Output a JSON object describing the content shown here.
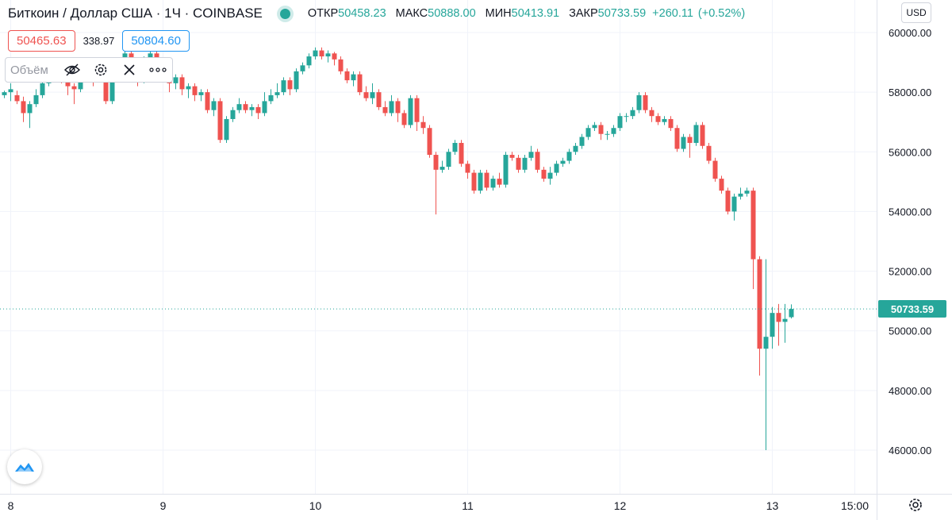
{
  "header": {
    "title": "Биткоин / Доллар США · 1Ч · COINBASE",
    "open_label": "ОТКР",
    "open": "50458.23",
    "high_label": "МАКС",
    "high": "50888.00",
    "low_label": "МИН",
    "low": "50413.91",
    "close_label": "ЗАКР",
    "close": "50733.59",
    "change": "+260.11",
    "change_pct": "(+0.52%)"
  },
  "trade": {
    "sell": "50465.63",
    "spread": "338.97",
    "buy": "50804.60"
  },
  "volume_toolbar": {
    "label": "Объём"
  },
  "currency": "USD",
  "last_price": "50733.59",
  "colors": {
    "up": "#26a69a",
    "down": "#ef5350",
    "grid": "#f0f3fa",
    "text": "#131722"
  },
  "chart_data": {
    "type": "candlestick",
    "title": "Биткоин / Доллар США · 1Ч · COINBASE",
    "y_range": [
      44800,
      60800
    ],
    "y_ticks": [
      46000,
      48000,
      50000,
      52000,
      54000,
      56000,
      58000,
      60000
    ],
    "y_tick_labels": [
      "46000.00",
      "48000.00",
      "50000.00",
      "52000.00",
      "54000.00",
      "56000.00",
      "58000.00",
      "60000.00"
    ],
    "x_labels": [
      "8",
      "9",
      "10",
      "11",
      "12",
      "13",
      "15:00"
    ],
    "x_label_index": [
      1,
      25,
      49,
      73,
      97,
      121,
      134
    ],
    "last_price": 50733.59,
    "candles": [
      [
        57900,
        58000,
        57800,
        58050
      ],
      [
        58000,
        58100,
        57700,
        58300
      ],
      [
        57900,
        57700,
        57600,
        58050
      ],
      [
        57700,
        57300,
        57000,
        57850
      ],
      [
        57300,
        57600,
        56800,
        57700
      ],
      [
        57600,
        57900,
        57500,
        58100
      ],
      [
        57900,
        58300,
        57800,
        58400
      ],
      [
        58300,
        58800,
        58200,
        58900
      ],
      [
        58800,
        58700,
        58500,
        58900
      ],
      [
        58700,
        58400,
        58300,
        58850
      ],
      [
        58400,
        58200,
        57900,
        58500
      ],
      [
        58200,
        58100,
        57600,
        58300
      ],
      [
        58100,
        58800,
        58000,
        59000
      ],
      [
        58800,
        58900,
        58700,
        59100
      ],
      [
        58900,
        58600,
        58200,
        59000
      ],
      [
        58600,
        58500,
        58400,
        58700
      ],
      [
        58500,
        57700,
        57600,
        58600
      ],
      [
        57700,
        58600,
        57600,
        58800
      ],
      [
        58600,
        58800,
        58500,
        59100
      ],
      [
        58800,
        59300,
        58700,
        59400
      ],
      [
        59300,
        58600,
        58500,
        59400
      ],
      [
        58600,
        58400,
        58200,
        58700
      ],
      [
        58400,
        59000,
        58300,
        59200
      ],
      [
        59000,
        59300,
        58900,
        59400
      ],
      [
        59300,
        58900,
        58800,
        59400
      ],
      [
        58900,
        58500,
        58400,
        59000
      ],
      [
        58500,
        58300,
        58000,
        58600
      ],
      [
        58300,
        58500,
        58100,
        58600
      ],
      [
        58500,
        58100,
        57900,
        58600
      ],
      [
        58100,
        58200,
        57800,
        58300
      ],
      [
        58200,
        57900,
        57700,
        58300
      ],
      [
        57900,
        58000,
        57700,
        58100
      ],
      [
        58000,
        57400,
        57300,
        58100
      ],
      [
        57400,
        57700,
        57200,
        57800
      ],
      [
        57700,
        56400,
        56300,
        57800
      ],
      [
        56400,
        57100,
        56300,
        57200
      ],
      [
        57100,
        57400,
        57000,
        57500
      ],
      [
        57400,
        57600,
        57300,
        57800
      ],
      [
        57600,
        57400,
        57300,
        57700
      ],
      [
        57400,
        57500,
        57200,
        57600
      ],
      [
        57500,
        57300,
        57100,
        57600
      ],
      [
        57300,
        57700,
        57200,
        58000
      ],
      [
        57700,
        57900,
        57600,
        58100
      ],
      [
        57900,
        58000,
        57800,
        58300
      ],
      [
        58000,
        58400,
        57900,
        58500
      ],
      [
        58400,
        58100,
        57900,
        58500
      ],
      [
        58100,
        58700,
        58000,
        58800
      ],
      [
        58700,
        58900,
        58600,
        59000
      ],
      [
        58900,
        59200,
        58800,
        59300
      ],
      [
        59200,
        59400,
        59100,
        59500
      ],
      [
        59400,
        59200,
        59100,
        59500
      ],
      [
        59200,
        59300,
        59000,
        59400
      ],
      [
        59300,
        59100,
        58900,
        59350
      ],
      [
        59100,
        58700,
        58600,
        59200
      ],
      [
        58700,
        58400,
        58300,
        58800
      ],
      [
        58400,
        58600,
        58200,
        58700
      ],
      [
        58600,
        58000,
        57900,
        58700
      ],
      [
        58000,
        57800,
        57700,
        58200
      ],
      [
        57800,
        58000,
        57600,
        58300
      ],
      [
        58000,
        57500,
        57400,
        58100
      ],
      [
        57500,
        57300,
        57200,
        57700
      ],
      [
        57300,
        57700,
        57200,
        57900
      ],
      [
        57700,
        57300,
        57000,
        57800
      ],
      [
        57300,
        56900,
        56800,
        57400
      ],
      [
        56900,
        57800,
        56800,
        57900
      ],
      [
        57800,
        57000,
        56700,
        57900
      ],
      [
        57000,
        56800,
        56600,
        57200
      ],
      [
        56800,
        55900,
        55800,
        56900
      ],
      [
        55900,
        55400,
        53900,
        56000
      ],
      [
        55400,
        55500,
        55300,
        55700
      ],
      [
        55500,
        56000,
        55400,
        56100
      ],
      [
        56000,
        56300,
        55900,
        56400
      ],
      [
        56300,
        55600,
        55500,
        56400
      ],
      [
        55600,
        55300,
        55100,
        55700
      ],
      [
        55300,
        54700,
        54600,
        55400
      ],
      [
        54700,
        55300,
        54600,
        55400
      ],
      [
        55300,
        54800,
        54700,
        55400
      ],
      [
        54800,
        55100,
        54700,
        55200
      ],
      [
        55100,
        54900,
        54800,
        55300
      ],
      [
        54900,
        55900,
        54800,
        56000
      ],
      [
        55900,
        55800,
        55700,
        56000
      ],
      [
        55800,
        55400,
        55300,
        55900
      ],
      [
        55400,
        55800,
        55300,
        55900
      ],
      [
        55800,
        56000,
        55700,
        56200
      ],
      [
        56000,
        55400,
        55300,
        56100
      ],
      [
        55400,
        55100,
        55000,
        55500
      ],
      [
        55100,
        55300,
        54900,
        55500
      ],
      [
        55300,
        55600,
        55200,
        55700
      ],
      [
        55600,
        55700,
        55500,
        55800
      ],
      [
        55700,
        56000,
        55600,
        56100
      ],
      [
        56000,
        56200,
        55900,
        56300
      ],
      [
        56200,
        56500,
        56100,
        56600
      ],
      [
        56500,
        56800,
        56400,
        56900
      ],
      [
        56800,
        56900,
        56700,
        57000
      ],
      [
        56900,
        56600,
        56400,
        57000
      ],
      [
        56600,
        56600,
        56400,
        56700
      ],
      [
        56600,
        56800,
        56500,
        56900
      ],
      [
        56800,
        57200,
        56700,
        57300
      ],
      [
        57200,
        57200,
        57000,
        57300
      ],
      [
        57200,
        57400,
        57100,
        57500
      ],
      [
        57400,
        57900,
        57300,
        58000
      ],
      [
        57900,
        57400,
        57300,
        58000
      ],
      [
        57400,
        57200,
        57000,
        57500
      ],
      [
        57200,
        57000,
        56900,
        57300
      ],
      [
        57000,
        57100,
        56900,
        57200
      ],
      [
        57100,
        56800,
        56700,
        57200
      ],
      [
        56800,
        56100,
        56000,
        56900
      ],
      [
        56100,
        56500,
        56000,
        56600
      ],
      [
        56500,
        56300,
        55800,
        56600
      ],
      [
        56300,
        56900,
        56200,
        57000
      ],
      [
        56900,
        56200,
        56100,
        57000
      ],
      [
        56200,
        55700,
        55600,
        56300
      ],
      [
        55700,
        55100,
        55000,
        55800
      ],
      [
        55100,
        54700,
        54600,
        55200
      ],
      [
        54700,
        54000,
        53900,
        54800
      ],
      [
        54000,
        54500,
        53700,
        54600
      ],
      [
        54500,
        54600,
        54400,
        54800
      ],
      [
        54600,
        54700,
        54500,
        54800
      ],
      [
        54700,
        52400,
        51400,
        54800
      ],
      [
        52400,
        49400,
        48500,
        52500
      ],
      [
        49400,
        49800,
        46000,
        52400
      ],
      [
        49800,
        50600,
        49400,
        50800
      ],
      [
        50600,
        50300,
        49500,
        50900
      ],
      [
        50300,
        50400,
        49600,
        50900
      ],
      [
        50458,
        50734,
        50414,
        50888
      ]
    ]
  }
}
